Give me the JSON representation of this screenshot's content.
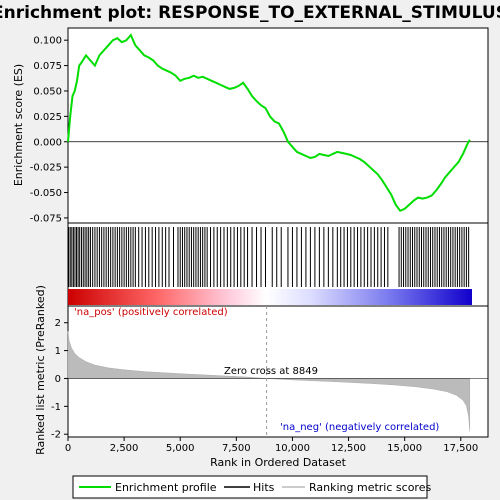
{
  "chart_data": [
    {
      "type": "line",
      "panel": "enrichment",
      "title": "Enrichment plot: RESPONSE_TO_EXTERNAL_STIMULUS",
      "ylabel": "Enrichment score (ES)",
      "ylim": [
        -0.08,
        0.112
      ],
      "yticks": [
        "0.100",
        "0.075",
        "0.050",
        "0.025",
        "0.000",
        "-0.025",
        "-0.050",
        "-0.075"
      ],
      "ytick_values": [
        0.1,
        0.075,
        0.05,
        0.025,
        0.0,
        -0.025,
        -0.05,
        -0.075
      ],
      "xlim": [
        0,
        18000
      ],
      "series": [
        {
          "name": "Enrichment profile",
          "color": "#00dd00",
          "x": [
            0,
            100,
            200,
            300,
            400,
            500,
            600,
            800,
            1000,
            1200,
            1400,
            1600,
            1800,
            2000,
            2200,
            2400,
            2600,
            2800,
            2900,
            3000,
            3200,
            3400,
            3600,
            3800,
            4000,
            4200,
            4400,
            4600,
            4800,
            5000,
            5200,
            5400,
            5600,
            5800,
            6000,
            6200,
            6400,
            6600,
            6800,
            7000,
            7200,
            7400,
            7600,
            7800,
            8000,
            8200,
            8400,
            8600,
            8800,
            9000,
            9200,
            9400,
            9600,
            9800,
            10000,
            10200,
            10400,
            10600,
            10800,
            11000,
            11200,
            11400,
            11600,
            11800,
            12000,
            12200,
            12400,
            12600,
            12800,
            13000,
            13200,
            13400,
            13600,
            13800,
            14000,
            14200,
            14400,
            14600,
            14800,
            15000,
            15200,
            15400,
            15600,
            15800,
            16000,
            16200,
            16400,
            16600,
            16800,
            17000,
            17200,
            17400,
            17600,
            17800,
            17900
          ],
          "y": [
            0.0,
            0.025,
            0.045,
            0.05,
            0.06,
            0.075,
            0.078,
            0.085,
            0.08,
            0.075,
            0.085,
            0.09,
            0.095,
            0.1,
            0.102,
            0.098,
            0.1,
            0.105,
            0.1,
            0.095,
            0.09,
            0.085,
            0.083,
            0.08,
            0.075,
            0.072,
            0.07,
            0.068,
            0.065,
            0.06,
            0.062,
            0.063,
            0.065,
            0.063,
            0.064,
            0.062,
            0.06,
            0.058,
            0.056,
            0.054,
            0.052,
            0.053,
            0.055,
            0.058,
            0.052,
            0.045,
            0.04,
            0.036,
            0.033,
            0.025,
            0.02,
            0.018,
            0.01,
            0.0,
            -0.005,
            -0.01,
            -0.012,
            -0.014,
            -0.016,
            -0.015,
            -0.012,
            -0.013,
            -0.014,
            -0.012,
            -0.01,
            -0.011,
            -0.012,
            -0.013,
            -0.015,
            -0.017,
            -0.02,
            -0.024,
            -0.028,
            -0.032,
            -0.038,
            -0.045,
            -0.052,
            -0.062,
            -0.068,
            -0.066,
            -0.062,
            -0.058,
            -0.055,
            -0.056,
            -0.055,
            -0.053,
            -0.048,
            -0.042,
            -0.035,
            -0.03,
            -0.025,
            -0.02,
            -0.012,
            -0.002,
            0.002
          ]
        }
      ]
    },
    {
      "type": "heatmap",
      "panel": "hits",
      "series_name": "Hits",
      "hit_color": "#000000",
      "hit_ranks": [
        30,
        100,
        170,
        240,
        310,
        380,
        450,
        520,
        600,
        680,
        760,
        840,
        920,
        1000,
        1100,
        1200,
        1300,
        1400,
        1500,
        1600,
        1700,
        1800,
        1900,
        2000,
        2100,
        2200,
        2300,
        2400,
        2500,
        2600,
        2700,
        2800,
        2900,
        3000,
        3150,
        3300,
        3450,
        3600,
        3750,
        3900,
        4050,
        4200,
        4350,
        4500,
        4700,
        4900,
        5000,
        5100,
        5200,
        5300,
        5400,
        5500,
        5600,
        5700,
        5800,
        5900,
        6000,
        6100,
        6200,
        6350,
        6500,
        6650,
        6800,
        6950,
        7100,
        7250,
        7400,
        7550,
        7700,
        7850,
        8000,
        8200,
        8400,
        8600,
        8800,
        9100,
        9300,
        9500,
        9800,
        10000,
        10200,
        10400,
        10600,
        10800,
        11000,
        11200,
        11400,
        11600,
        11800,
        12000,
        12150,
        12300,
        12450,
        12600,
        12750,
        12900,
        13050,
        13200,
        13350,
        13500,
        13650,
        13800,
        13950,
        14100,
        14250,
        14750,
        14850,
        14950,
        15050,
        15150,
        15250,
        15350,
        15450,
        15550,
        15650,
        15750,
        15850,
        15950,
        16050,
        16150,
        16250,
        16350,
        16450,
        16550,
        16650,
        16750,
        16850,
        16950,
        17050,
        17150,
        17250,
        17350,
        17450,
        17550,
        17650,
        17750,
        17850
      ]
    },
    {
      "type": "area",
      "panel": "ranked_metric",
      "ylabel": "Ranked list metric (PreRanked)",
      "xlabel": "Rank in Ordered Dataset",
      "ylim": [
        -2.1,
        2.6
      ],
      "yticks": [
        "2",
        "1",
        "0",
        "-1",
        "-2"
      ],
      "ytick_values": [
        2,
        1,
        0,
        -1,
        -2
      ],
      "xlim": [
        0,
        18000
      ],
      "xticks": [
        "0",
        "2,500",
        "5,000",
        "7,500",
        "10,000",
        "12,500",
        "15,000",
        "17,500"
      ],
      "xtick_values": [
        0,
        2500,
        5000,
        7500,
        10000,
        12500,
        15000,
        17500
      ],
      "series": [
        {
          "name": "Ranking metric scores",
          "color": "#bbbbbb",
          "x": [
            0,
            50,
            150,
            300,
            500,
            800,
            1200,
            1800,
            2500,
            3500,
            5000,
            6500,
            8000,
            8849,
            10000,
            12000,
            13500,
            14500,
            15500,
            16300,
            16900,
            17300,
            17600,
            17750,
            17850,
            17900
          ],
          "y": [
            1.7,
            1.35,
            1.1,
            0.9,
            0.75,
            0.6,
            0.48,
            0.38,
            0.31,
            0.24,
            0.17,
            0.11,
            0.05,
            0.0,
            -0.05,
            -0.12,
            -0.18,
            -0.23,
            -0.3,
            -0.38,
            -0.48,
            -0.6,
            -0.78,
            -0.98,
            -1.35,
            -1.9
          ]
        }
      ],
      "annotations": {
        "pos_label": "'na_pos' (positively correlated)",
        "neg_label": "'na_neg' (negatively correlated)",
        "zero_cross": "Zero cross at 8849",
        "zero_cross_rank": 8849,
        "pos_color": "#cc0000",
        "neg_color": "#0000cc"
      }
    }
  ],
  "legend": {
    "items": [
      {
        "label": "Enrichment profile",
        "color": "#00dd00"
      },
      {
        "label": "Hits",
        "color": "#000000"
      },
      {
        "label": "Ranking metric scores",
        "color": "#bbbbbb"
      }
    ]
  }
}
